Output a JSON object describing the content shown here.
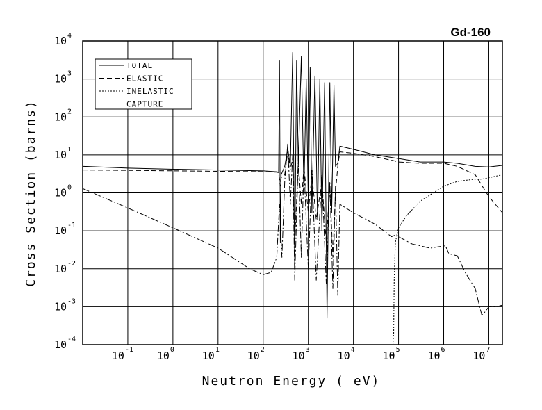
{
  "chart_data": {
    "type": "line",
    "title": "Gd-160",
    "xlabel": "Neutron Energy ( eV)",
    "ylabel": "Cross Section (barns)",
    "xscale": "log",
    "yscale": "log",
    "xlim": [
      0.01,
      20000000
    ],
    "ylim": [
      0.0001,
      10000
    ],
    "grid": true,
    "legend_position": "top-left",
    "x_ticks": [
      {
        "base": "10",
        "exp": "-1",
        "value": 0.1
      },
      {
        "base": "10",
        "exp": "0",
        "value": 1
      },
      {
        "base": "10",
        "exp": "1",
        "value": 10
      },
      {
        "base": "10",
        "exp": "2",
        "value": 100
      },
      {
        "base": "10",
        "exp": "3",
        "value": 1000
      },
      {
        "base": "10",
        "exp": "4",
        "value": 10000
      },
      {
        "base": "10",
        "exp": "5",
        "value": 100000
      },
      {
        "base": "10",
        "exp": "6",
        "value": 1000000
      },
      {
        "base": "10",
        "exp": "7",
        "value": 10000000
      }
    ],
    "y_ticks": [
      {
        "base": "10",
        "exp": "-4",
        "value": 0.0001
      },
      {
        "base": "10",
        "exp": "-3",
        "value": 0.001
      },
      {
        "base": "10",
        "exp": "-2",
        "value": 0.01
      },
      {
        "base": "10",
        "exp": "-1",
        "value": 0.1
      },
      {
        "base": "10",
        "exp": "0",
        "value": 1
      },
      {
        "base": "10",
        "exp": "1",
        "value": 10
      },
      {
        "base": "10",
        "exp": "2",
        "value": 100
      },
      {
        "base": "10",
        "exp": "3",
        "value": 1000
      },
      {
        "base": "10",
        "exp": "4",
        "value": 10000
      }
    ],
    "series": [
      {
        "name": "TOTAL",
        "dash": "",
        "x": [
          0.01,
          0.1,
          1,
          10,
          100,
          200,
          220,
          230,
          240,
          250,
          300,
          350,
          400,
          450,
          500,
          550,
          600,
          700,
          800,
          900,
          1000,
          1100,
          1200,
          1400,
          1600,
          1800,
          2000,
          2300,
          2600,
          3000,
          3300,
          3700,
          4000,
          4500,
          5000,
          10000,
          30000,
          100000,
          300000,
          1000000,
          2000000,
          5000000,
          10000000,
          20000000
        ],
        "y": [
          5.0,
          4.5,
          4.2,
          4.0,
          3.8,
          3.6,
          3.5,
          3000,
          0.05,
          3.0,
          5.0,
          15,
          5.0,
          5000,
          0.01,
          3000,
          6.0,
          4000,
          1.0,
          1000,
          0.5,
          2000,
          0.3,
          1200,
          0.2,
          1000,
          0.1,
          800,
          0.0005,
          800,
          0.3,
          700,
          5.0,
          6.0,
          17,
          14,
          10,
          8.0,
          6.5,
          6.5,
          6.0,
          5.0,
          4.8,
          5.3
        ]
      },
      {
        "name": "ELASTIC",
        "dash": "7,4",
        "x": [
          0.01,
          0.1,
          1,
          10,
          100,
          200,
          220,
          230,
          240,
          250,
          300,
          350,
          400,
          450,
          500,
          600,
          700,
          800,
          1000,
          1200,
          1500,
          2000,
          2500,
          3000,
          3500,
          4000,
          4500,
          5000,
          10000,
          30000,
          60000,
          80000,
          100000,
          300000,
          1000000,
          2000000,
          5000000,
          10000000,
          20000000
        ],
        "y": [
          4.0,
          3.9,
          3.8,
          3.7,
          3.6,
          3.5,
          3.4,
          2.0,
          1.5,
          2.5,
          3.0,
          12,
          4.0,
          8.0,
          0.05,
          6.0,
          0.5,
          5.0,
          0.3,
          3.0,
          0.2,
          2.0,
          0.05,
          1.5,
          0.02,
          1.0,
          5.0,
          12,
          11,
          9.0,
          7.5,
          7.0,
          6.5,
          6.0,
          6.0,
          5.0,
          3.0,
          0.8,
          0.3
        ]
      },
      {
        "name": "INELASTIC",
        "dash": "2,2",
        "x": [
          75000,
          78000,
          80000,
          85000,
          100000,
          150000,
          300000,
          1000000,
          2000000,
          5000000,
          7000000,
          10000000,
          20000000
        ],
        "y": [
          0.0001,
          0.0002,
          0.005,
          0.05,
          0.12,
          0.25,
          0.6,
          1.5,
          2.0,
          2.3,
          2.3,
          2.5,
          3.0
        ]
      },
      {
        "name": "CAPTURE",
        "dash": "10,3,2,3",
        "x": [
          0.01,
          0.1,
          1,
          10,
          50,
          100,
          150,
          200,
          230,
          260,
          300,
          350,
          400,
          450,
          500,
          600,
          700,
          800,
          1000,
          1200,
          1500,
          2000,
          2500,
          3000,
          3500,
          4000,
          4500,
          5000,
          10000,
          30000,
          70000,
          90000,
          100000,
          200000,
          500000,
          1000000,
          1100000,
          1300000,
          2000000,
          3000000,
          5000000,
          7000000,
          8000000,
          10000000,
          15000000,
          20000000
        ],
        "y": [
          1.3,
          0.4,
          0.12,
          0.035,
          0.01,
          0.007,
          0.008,
          0.02,
          0.5,
          0.02,
          2.0,
          20,
          0.5,
          10,
          0.005,
          8.0,
          0.02,
          5.0,
          0.01,
          4.0,
          0.005,
          3.0,
          0.004,
          2.0,
          0.003,
          1.5,
          0.002,
          0.5,
          0.3,
          0.15,
          0.07,
          0.08,
          0.07,
          0.045,
          0.035,
          0.04,
          0.04,
          0.025,
          0.022,
          0.008,
          0.003,
          0.0006,
          0.0007,
          0.001,
          0.001,
          0.0011
        ]
      }
    ]
  }
}
